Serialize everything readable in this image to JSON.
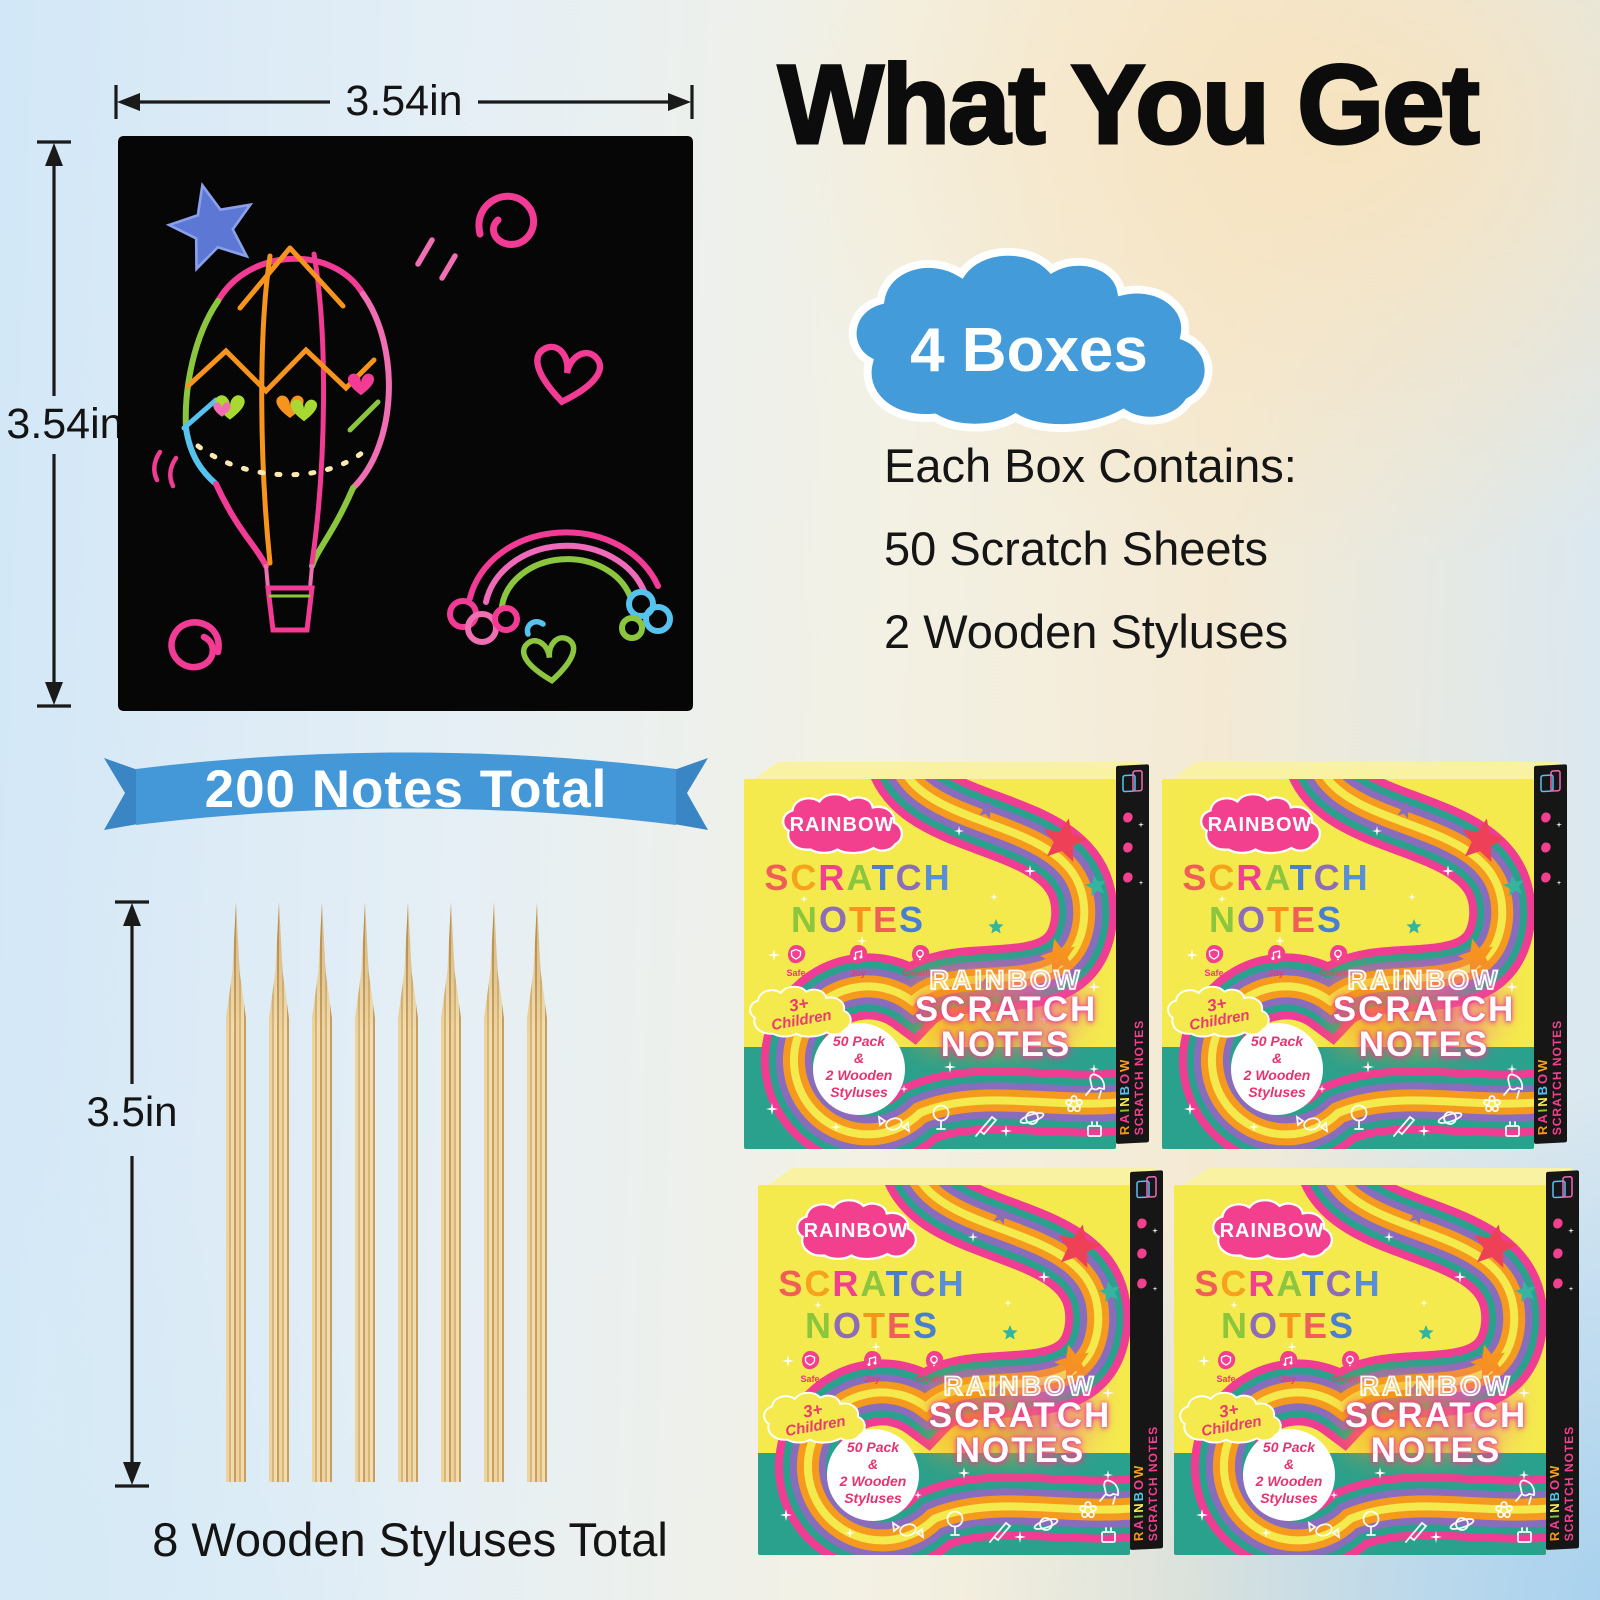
{
  "measurements": {
    "note_width": "3.54in",
    "note_height": "3.54in",
    "stylus_length": "3.5in"
  },
  "note_banner": "200 Notes Total",
  "stylus_count": 8,
  "stylus_caption": "8 Wooden Styluses Total",
  "heading": "What You Get",
  "box_count_badge": "4 Boxes",
  "box_contents": {
    "intro": "Each Box Contains:",
    "item1": "50 Scratch Sheets",
    "item2": "2 Wooden Styluses"
  },
  "box": {
    "brand": "RAINBOW",
    "word1": "SCRATCH",
    "word1_colors": [
      "#ef5f57",
      "#f7a21d",
      "#f2408f",
      "#8cc63f",
      "#4a7fd0",
      "#8d6cb8",
      "#5a8fd8"
    ],
    "word2": "NOTES",
    "word2_colors": [
      "#8cc63f",
      "#8d6cb8",
      "#f7941d",
      "#ef5f57",
      "#4a7fd0"
    ],
    "features": [
      "Safe",
      "Joy",
      "Creative"
    ],
    "age_line1": "3+",
    "age_line2": "Children",
    "pack_lines": [
      "50 Pack",
      "&",
      "2 Wooden",
      "Styluses"
    ],
    "title_outline": "RAINBOW",
    "title_line1": "SCRATCH",
    "title_line2": "NOTES",
    "spine_word1": "RAINBOW",
    "spine_word1_colors": [
      "#f7941d",
      "#f2408f",
      "#8cc63f",
      "#f5ec4e",
      "#56c2ee",
      "#f2408f",
      "#f7a21d"
    ],
    "spine_word2": "SCRATCH NOTES"
  },
  "colors": {
    "ribbon_blue": "#4498d8",
    "badge_cloud_blue": "#449bda",
    "box_yellow": "#f4ea4d",
    "box_teal": "#2aa18c",
    "rainbow_pink": "#ee3d92",
    "rainbow_orange": "#f59a1e",
    "rainbow_purple": "#8a6cbc",
    "accent_text_pink": "#ea3a6f",
    "heading_black": "#0c0c0c"
  }
}
